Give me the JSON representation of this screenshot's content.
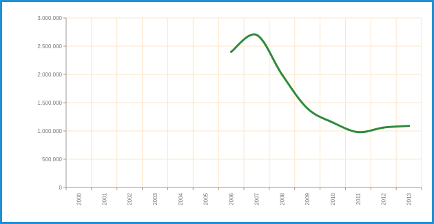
{
  "chart_data": {
    "type": "line",
    "x": [
      "2000",
      "2001",
      "2002",
      "2003",
      "2004",
      "2005",
      "2006",
      "2007",
      "2008",
      "2009",
      "2010",
      "2011",
      "2012",
      "2013"
    ],
    "series": [
      {
        "values": [
          null,
          null,
          null,
          null,
          null,
          null,
          2400000,
          2700000,
          2000000,
          1400000,
          1150000,
          980000,
          1060000,
          1090000
        ]
      }
    ],
    "y_ticks": [
      "3.000.000",
      "2.500.000",
      "2.000.000",
      "1.500.000",
      "1.000.000",
      "500.000",
      "0"
    ],
    "y_tick_values": [
      3000000,
      2500000,
      2000000,
      1500000,
      1000000,
      500000,
      0
    ],
    "ylim": [
      0,
      3000000
    ],
    "grid": true,
    "legend": "none",
    "colors": {
      "line": "#2e8b3a",
      "grid": "#fde5c8",
      "axis": "#999999",
      "frame": "#1e90d8"
    }
  }
}
